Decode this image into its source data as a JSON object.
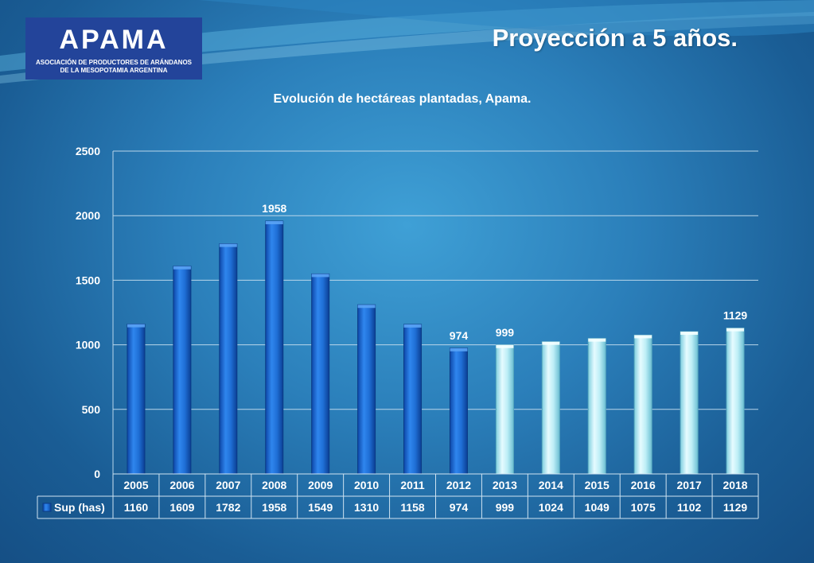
{
  "logo": {
    "name": "APAMA",
    "subtitle_line1": "ASOCIACIÓN DE PRODUCTORES DE ARÁNDANOS",
    "subtitle_line2": "DE LA MESOPOTAMIA ARGENTINA"
  },
  "slide_title": "Proyección a 5 años.",
  "colors": {
    "actual_bar": "#1f6fd6",
    "projected_bar": "#bdeef6",
    "gridline": "#b9d6ea"
  },
  "chart_data": {
    "type": "bar",
    "title": "Evolución de hectáreas plantadas, Apama.",
    "categories": [
      "2005",
      "2006",
      "2007",
      "2008",
      "2009",
      "2010",
      "2011",
      "2012",
      "2013",
      "2014",
      "2015",
      "2016",
      "2017",
      "2018"
    ],
    "series": [
      {
        "name": "Sup (has)",
        "values": [
          1160,
          1609,
          1782,
          1958,
          1549,
          1310,
          1158,
          974,
          999,
          1024,
          1049,
          1075,
          1102,
          1129
        ]
      }
    ],
    "projected_from": "2013",
    "ylim": [
      0,
      2500
    ],
    "yticks": [
      "0",
      "500",
      "1000",
      "1500",
      "2000",
      "2500"
    ],
    "data_labels": [
      {
        "category": "2008",
        "text": "1958"
      },
      {
        "category": "2012",
        "text": "974"
      },
      {
        "category": "2013",
        "text": "999"
      },
      {
        "category": "2018",
        "text": "1129"
      }
    ],
    "data_table": true,
    "grid": true,
    "xlabel": "",
    "ylabel": ""
  }
}
